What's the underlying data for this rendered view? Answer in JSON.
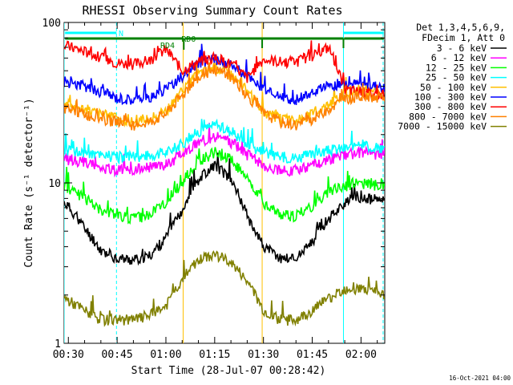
{
  "chart_data": {
    "type": "line",
    "title": "RHESSI Observing Summary Count Rates",
    "xlabel": "Start Time (28-Jul-07 00:28:42)",
    "ylabel": "Count Rate (s⁻¹ detector⁻¹)",
    "yscale": "log",
    "ylim": [
      1,
      100
    ],
    "xlim_minutes": [
      28.7,
      127.3
    ],
    "x_ticks": [
      {
        "label": "00:30",
        "min": 30
      },
      {
        "label": "00:45",
        "min": 45
      },
      {
        "label": "01:00",
        "min": 60
      },
      {
        "label": "01:15",
        "min": 75
      },
      {
        "label": "01:30",
        "min": 90
      },
      {
        "label": "01:45",
        "min": 105
      },
      {
        "label": "02:00",
        "min": 120
      }
    ],
    "y_ticks": [
      {
        "label": "1",
        "value": 1
      },
      {
        "label": "10",
        "value": 10
      },
      {
        "label": "100",
        "value": 100
      }
    ],
    "legend": {
      "placement": "right",
      "header": [
        "Det 1,3,4,5,6,9,",
        "FDecim 1, Att 0"
      ]
    },
    "series": [
      {
        "name": "3 - 6 keV",
        "color": "#000000",
        "x": [
          29,
          35,
          40,
          45,
          50,
          55,
          60,
          65,
          70,
          75,
          80,
          85,
          90,
          95,
          100,
          105,
          110,
          115,
          120,
          127
        ],
        "values": [
          7.5,
          5.2,
          3.8,
          3.4,
          3.3,
          3.5,
          4.5,
          6.8,
          10.5,
          13,
          10.5,
          6.2,
          4.0,
          3.4,
          3.4,
          4.2,
          6.0,
          7.5,
          8.0,
          7.8
        ]
      },
      {
        "name": "6 - 12 keV",
        "color": "#ff00ff",
        "x": [
          29,
          35,
          40,
          45,
          50,
          55,
          60,
          65,
          70,
          75,
          80,
          85,
          90,
          95,
          100,
          105,
          110,
          115,
          120,
          127
        ],
        "values": [
          14,
          13.5,
          12.5,
          12,
          12,
          12.5,
          13,
          15,
          18,
          19.5,
          18,
          15,
          13,
          12,
          12,
          13,
          14,
          15,
          15.5,
          15
        ]
      },
      {
        "name": "12 - 25 keV",
        "color": "#00ff00",
        "x": [
          29,
          35,
          40,
          45,
          50,
          55,
          60,
          65,
          70,
          75,
          80,
          85,
          90,
          95,
          100,
          105,
          110,
          115,
          120,
          127
        ],
        "values": [
          9.5,
          8,
          6.8,
          6.2,
          6,
          6.3,
          7.5,
          10,
          13.5,
          15.5,
          14,
          10.5,
          7.5,
          6.3,
          6.2,
          7.2,
          8.8,
          9.5,
          10,
          9.5
        ]
      },
      {
        "name": "25 - 50 keV",
        "color": "#00ffff",
        "x": [
          29,
          35,
          40,
          45,
          50,
          55,
          60,
          65,
          70,
          75,
          80,
          85,
          90,
          95,
          100,
          105,
          110,
          115,
          120,
          127
        ],
        "values": [
          16,
          15.5,
          15,
          14.5,
          14.5,
          15,
          15.5,
          17.5,
          21,
          23,
          21,
          17.5,
          15.5,
          14.5,
          14.5,
          15,
          16,
          16.5,
          17,
          16.5
        ]
      },
      {
        "name": "50 - 100 keV",
        "color": "#ffbf00",
        "x": [
          29,
          35,
          40,
          45,
          50,
          55,
          60,
          65,
          70,
          75,
          80,
          85,
          90,
          95,
          100,
          105,
          110,
          115,
          120,
          127
        ],
        "values": [
          31,
          29,
          27,
          25,
          24,
          25,
          28,
          37,
          48,
          53,
          48,
          37,
          28,
          25,
          24,
          27,
          31,
          35,
          37,
          36
        ]
      },
      {
        "name": "100 - 300 keV",
        "color": "#0000ff",
        "x": [
          29,
          35,
          40,
          45,
          50,
          55,
          60,
          65,
          70,
          75,
          80,
          85,
          90,
          95,
          100,
          105,
          110,
          115,
          120,
          127
        ],
        "values": [
          43,
          40,
          37,
          34,
          33,
          34,
          38,
          46,
          55,
          59,
          55,
          46,
          38,
          34,
          33,
          36,
          40,
          42,
          41,
          40
        ]
      },
      {
        "name": "300 - 800 keV",
        "color": "#ff0000",
        "x": [
          29,
          35,
          40,
          45,
          50,
          55,
          60,
          65,
          70,
          75,
          80,
          85,
          90,
          95,
          100,
          105,
          110,
          115,
          120,
          127
        ],
        "values": [
          72,
          66,
          60,
          56,
          55,
          58,
          68,
          50,
          57,
          60,
          55,
          45,
          59,
          57,
          57,
          62,
          70,
          38,
          37,
          35
        ]
      },
      {
        "name": "800 - 7000 keV",
        "color": "#ff8000",
        "x": [
          29,
          35,
          40,
          45,
          50,
          55,
          60,
          65,
          70,
          75,
          80,
          85,
          90,
          95,
          100,
          105,
          110,
          115,
          120,
          127
        ],
        "values": [
          29,
          27,
          25,
          24,
          23,
          24,
          27,
          35,
          46,
          51,
          46,
          35,
          27,
          24,
          23,
          25,
          29,
          33,
          35,
          34
        ]
      },
      {
        "name": "7000 - 15000 keV",
        "color": "#808000",
        "x": [
          29,
          35,
          40,
          45,
          50,
          55,
          60,
          65,
          70,
          75,
          80,
          85,
          90,
          95,
          100,
          105,
          110,
          115,
          120,
          127
        ],
        "values": [
          1.9,
          1.6,
          1.4,
          1.4,
          1.4,
          1.5,
          1.7,
          2.5,
          3.3,
          3.6,
          3.2,
          2.4,
          1.6,
          1.4,
          1.4,
          1.6,
          1.9,
          2.2,
          2.2,
          2.0
        ]
      }
    ],
    "annotations": [
      {
        "text": "N",
        "x_min": 46.2
      },
      {
        "text": "RD4",
        "x_min": 60.5
      },
      {
        "text": "RD0",
        "x_min": 67
      }
    ],
    "flag_bars": [
      {
        "name": "N",
        "color": "#00ffff",
        "x_from": 29,
        "x_to": 44.8
      },
      {
        "name": "N",
        "color": "#00ffff",
        "x_from": 114.6,
        "x_to": 127
      },
      {
        "name": "attenuator",
        "color": "#008000",
        "x_from": 29,
        "x_to": 65.5
      },
      {
        "name": "attenuator",
        "color": "#008000",
        "x_from": 65.8,
        "x_to": 89.6
      },
      {
        "name": "attenuator",
        "color": "#008000",
        "x_from": 89.6,
        "x_to": 114.6
      },
      {
        "name": "attenuator",
        "color": "#008000",
        "x_from": 114.8,
        "x_to": 127
      }
    ],
    "vlines": [
      {
        "x_min": 28.7,
        "color": "#00ffff",
        "style": "solid"
      },
      {
        "x_min": 44.8,
        "color": "#00ffff",
        "style": "dashed"
      },
      {
        "x_min": 114.6,
        "color": "#00ffff",
        "style": "solid"
      },
      {
        "x_min": 126.8,
        "color": "#00ffff",
        "style": "dashed"
      },
      {
        "x_min": 65.3,
        "color": "#ffbf00",
        "style": "solid"
      },
      {
        "x_min": 89.6,
        "color": "#ffbf00",
        "style": "solid"
      }
    ]
  },
  "footer": {
    "stamp": "16-Oct-2021 04:00"
  }
}
